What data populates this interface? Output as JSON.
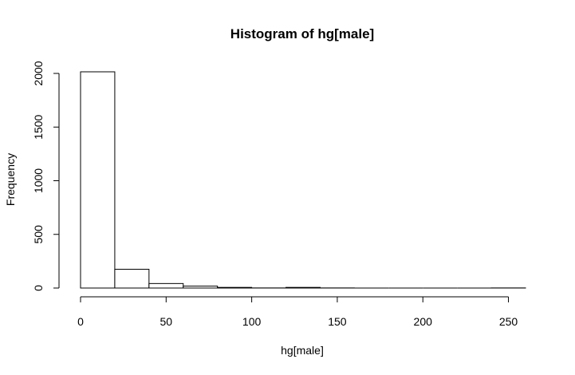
{
  "chart_data": {
    "type": "bar",
    "title": "Histogram of hg[male]",
    "xlabel": "hg[male]",
    "ylabel": "Frequency",
    "bins": [
      {
        "start": 0,
        "end": 20,
        "count": 2015
      },
      {
        "start": 20,
        "end": 40,
        "count": 175
      },
      {
        "start": 40,
        "end": 60,
        "count": 42
      },
      {
        "start": 60,
        "end": 80,
        "count": 18
      },
      {
        "start": 80,
        "end": 100,
        "count": 6
      },
      {
        "start": 100,
        "end": 120,
        "count": 1
      },
      {
        "start": 120,
        "end": 140,
        "count": 6
      },
      {
        "start": 140,
        "end": 160,
        "count": 1
      },
      {
        "start": 160,
        "end": 180,
        "count": 0
      },
      {
        "start": 180,
        "end": 200,
        "count": 0
      },
      {
        "start": 200,
        "end": 220,
        "count": 0
      },
      {
        "start": 220,
        "end": 240,
        "count": 0
      },
      {
        "start": 240,
        "end": 260,
        "count": 1
      }
    ],
    "xlim": [
      0,
      260
    ],
    "ylim": [
      0,
      2015
    ],
    "xticks": [
      0,
      50,
      100,
      150,
      200,
      250
    ],
    "yticks": [
      0,
      500,
      1000,
      1500,
      2000
    ],
    "grid": false,
    "legend": "none"
  }
}
